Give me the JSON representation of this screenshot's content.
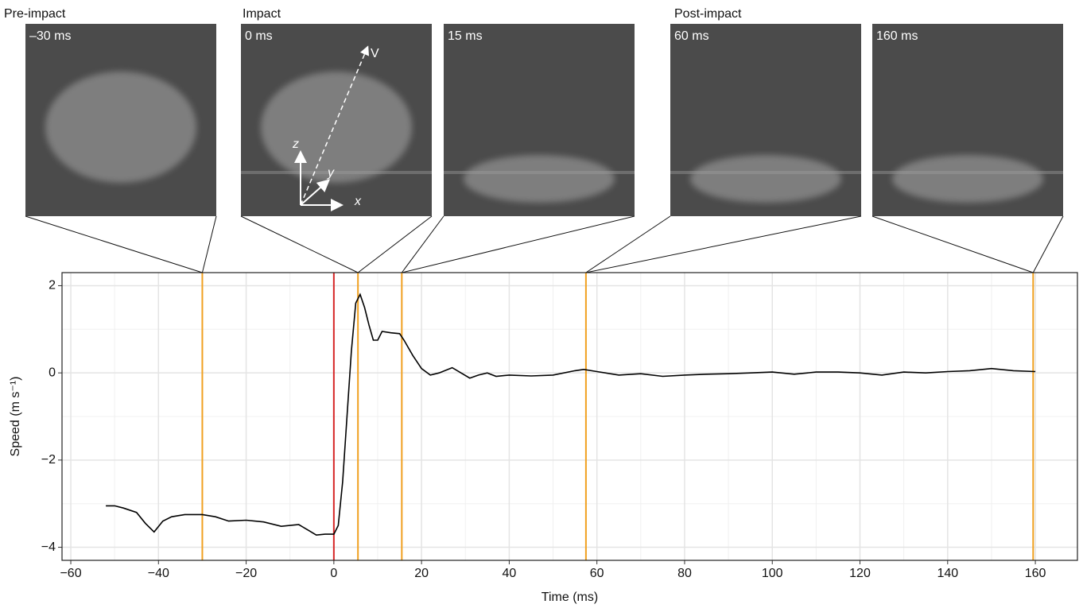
{
  "chart_data": {
    "type": "line",
    "xlabel": "Time (ms)",
    "ylabel": "Speed (m s⁻¹)",
    "color": "#000000",
    "x": [
      -52,
      -50,
      -48,
      -45,
      -43,
      -41,
      -39,
      -37,
      -34,
      -30,
      -27,
      -24,
      -20,
      -16,
      -12,
      -8,
      -6,
      -4,
      -2,
      0,
      1,
      2,
      3,
      4,
      5,
      6,
      7,
      8,
      9,
      10,
      11,
      13,
      15,
      16,
      18,
      20,
      22,
      24,
      27,
      29,
      31,
      33,
      35,
      37,
      40,
      45,
      50,
      55,
      57,
      60,
      65,
      70,
      75,
      80,
      85,
      90,
      95,
      100,
      105,
      110,
      115,
      120,
      125,
      130,
      135,
      140,
      145,
      150,
      155,
      160
    ],
    "values": [
      -3.05,
      -3.05,
      -3.1,
      -3.2,
      -3.45,
      -3.65,
      -3.4,
      -3.3,
      -3.25,
      -3.25,
      -3.3,
      -3.4,
      -3.38,
      -3.42,
      -3.52,
      -3.48,
      -3.6,
      -3.72,
      -3.7,
      -3.7,
      -3.5,
      -2.5,
      -1,
      0.5,
      1.6,
      1.8,
      1.5,
      1.1,
      0.75,
      0.75,
      0.95,
      0.92,
      0.9,
      0.75,
      0.4,
      0.1,
      -0.05,
      0,
      0.12,
      0,
      -0.12,
      -0.05,
      0,
      -0.08,
      -0.05,
      -0.07,
      -0.05,
      0.05,
      0.08,
      0.03,
      -0.05,
      -0.02,
      -0.08,
      -0.05,
      -0.03,
      -0.02,
      0,
      0.02,
      -0.03,
      0.02,
      0.02,
      0,
      -0.05,
      0.02,
      0,
      0.03,
      0.05,
      0.1,
      0.05,
      0.03
    ],
    "xlim": [
      -62,
      169.6
    ],
    "ylim": [
      -4.3,
      2.3
    ],
    "xticks": [
      {
        "value": -60,
        "label": "−60"
      },
      {
        "value": -40,
        "label": "−40"
      },
      {
        "value": -20,
        "label": "−20"
      },
      0,
      20,
      40,
      60,
      80,
      100,
      120,
      140,
      160
    ],
    "yticks": [
      {
        "value": -4,
        "label": "−4"
      },
      {
        "value": -2,
        "label": "−2"
      },
      0,
      2
    ],
    "grid": true,
    "impact_line": {
      "x": 0,
      "color": "#d62728"
    },
    "markers": [
      {
        "x": -30,
        "color": "#f0a020"
      },
      {
        "x": 5.5,
        "color": "#f0a020"
      },
      {
        "x": 15.5,
        "color": "#f0a020"
      },
      {
        "x": 57.5,
        "color": "#f0a020"
      },
      {
        "x": 159.5,
        "color": "#f0a020"
      }
    ]
  },
  "panels": {
    "groups": [
      "Pre-impact",
      "Impact",
      "Post-impact"
    ],
    "frames": [
      "–30 ms",
      "0 ms",
      "15 ms",
      "60 ms",
      "160 ms"
    ],
    "axes": [
      "z",
      "y",
      "x",
      "V"
    ]
  }
}
